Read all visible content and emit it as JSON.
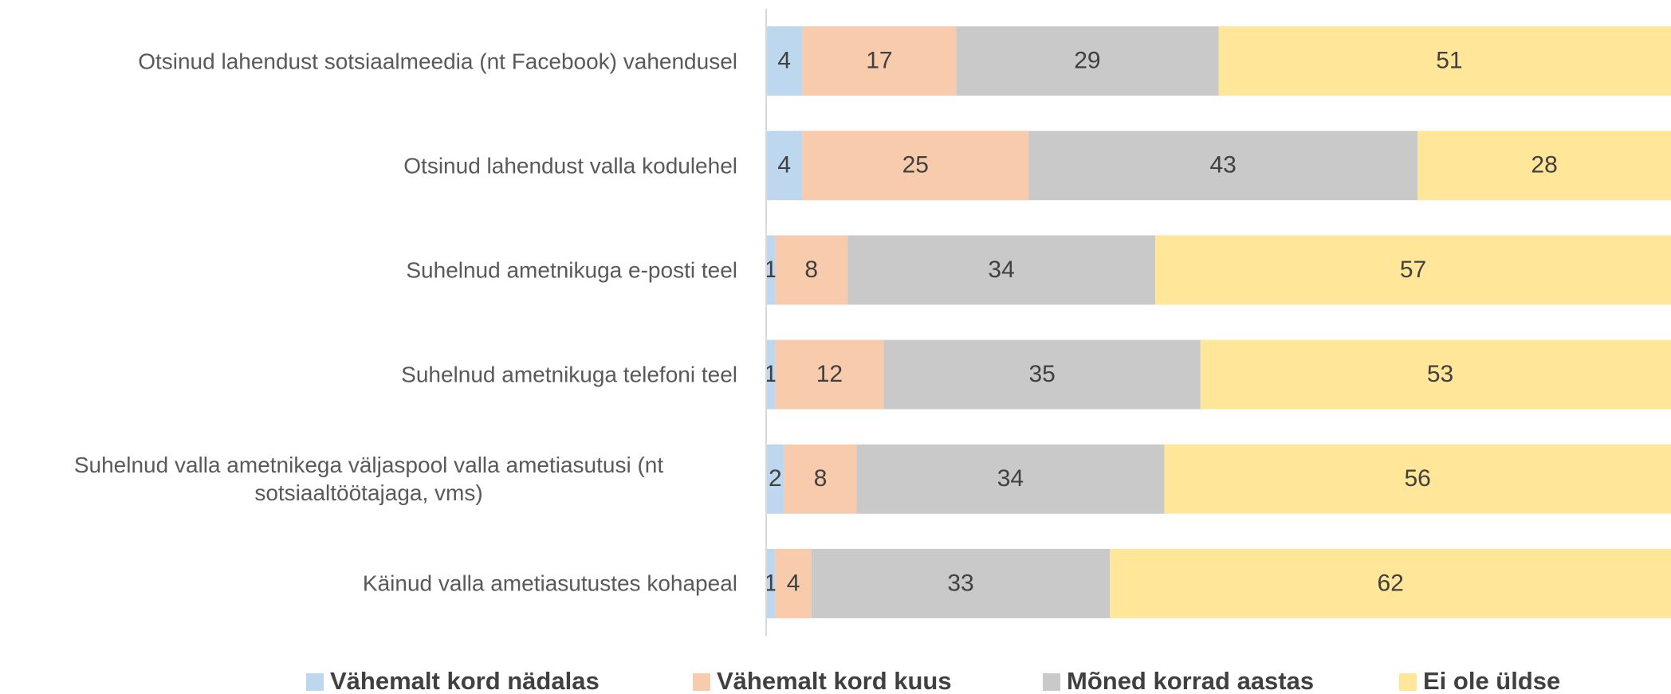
{
  "chart_data": {
    "type": "stacked_barh",
    "categories": [
      "Otsinud lahendust sotsiaalmeedia (nt Facebook) vahendusel",
      "Otsinud lahendust valla kodulehel",
      "Suhelnud ametnikuga e-posti teel",
      "Suhelnud ametnikuga telefoni teel",
      "Suhelnud valla ametnikega väljaspool valla ametiasutusi (nt sotsiaaltöötajaga, vms)",
      "Käinud valla ametiasutustes kohapeal"
    ],
    "series": [
      {
        "name": "Vähemalt kord nädalas",
        "color": "#bdd7ee",
        "values": [
          4,
          4,
          1,
          1,
          2,
          1
        ]
      },
      {
        "name": "Vähemalt kord kuus",
        "color": "#f8cbad",
        "values": [
          17,
          25,
          8,
          12,
          8,
          4
        ]
      },
      {
        "name": "Mõned korrad aastas",
        "color": "#c9c9c9",
        "values": [
          29,
          43,
          34,
          35,
          34,
          33
        ]
      },
      {
        "name": "Ei ole üldse",
        "color": "#ffe699",
        "values": [
          51,
          28,
          57,
          53,
          56,
          62
        ]
      }
    ],
    "xlim": [
      0,
      100
    ],
    "legend": "bottom"
  }
}
